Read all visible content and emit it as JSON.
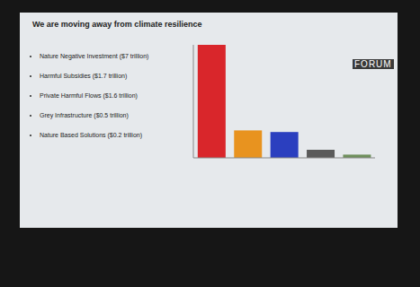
{
  "chart_data": {
    "type": "bar",
    "title": "We are moving away from climate resilience",
    "categories": [
      "Nature Negative Investment ($7 trillion)",
      "Harmful Subsidies ($1.7 trillion)",
      "Private Harmful Flows ($1.6 trillion)",
      "Grey Infrastructure ($0.5 trillion)",
      "Nature Based Solutions ($0.2 trillion)"
    ],
    "values": [
      7,
      1.7,
      1.6,
      0.5,
      0.2
    ],
    "colors": [
      "#d9262b",
      "#e8931f",
      "#2b3fbf",
      "#5a5a5a",
      "#6f8f5c"
    ],
    "ylim": [
      0,
      7
    ],
    "yticks": [],
    "grid": false,
    "tick_labels": false,
    "annotations": [
      "FORUM"
    ]
  }
}
